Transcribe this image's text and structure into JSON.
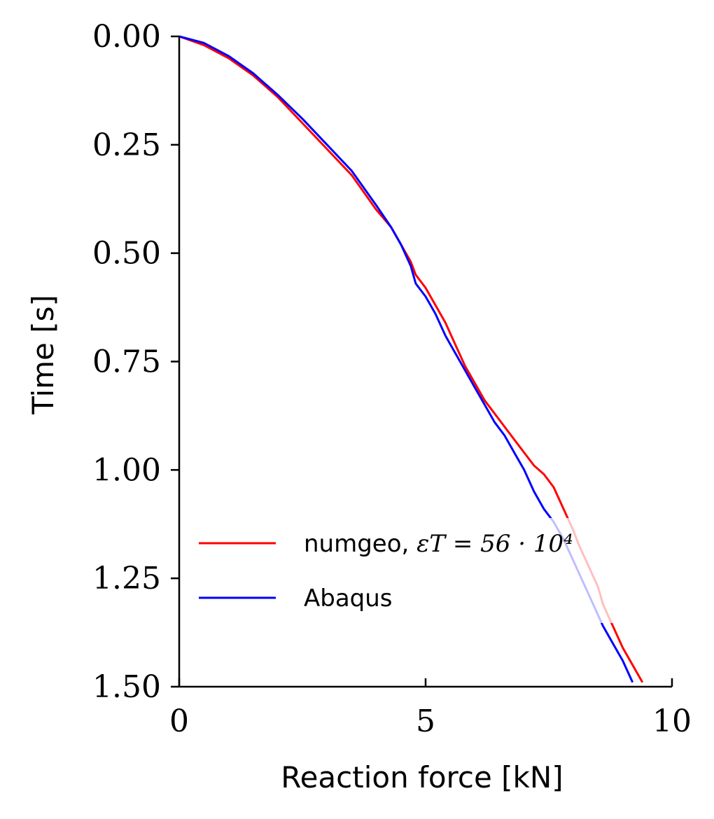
{
  "chart_data": {
    "type": "line",
    "xlabel": "Reaction force [kN]",
    "ylabel": "Time [s]",
    "xlim": [
      0,
      10
    ],
    "ylim": [
      0,
      1.5
    ],
    "y_inverted": true,
    "x_ticks": [
      "0",
      "5",
      "10"
    ],
    "y_ticks": [
      "0.00",
      "0.25",
      "0.50",
      "0.75",
      "1.00",
      "1.25",
      "1.50"
    ],
    "grid": false,
    "legend_position": "lower-left",
    "series": [
      {
        "name": "numgeo, ",
        "name_math": "εT = 56 · 10⁴",
        "color": "#ff0000",
        "x": [
          0.0,
          0.5,
          1.0,
          1.5,
          2.0,
          2.5,
          3.0,
          3.5,
          4.0,
          4.3,
          4.5,
          4.7,
          4.8,
          5.0,
          5.2,
          5.4,
          5.6,
          5.8,
          6.0,
          6.2,
          6.4,
          6.6,
          6.8,
          7.0,
          7.2,
          7.4,
          7.6,
          7.8,
          8.0,
          8.1,
          8.3,
          8.5,
          8.6,
          8.8,
          9.0,
          9.2,
          9.4
        ],
        "y": [
          0.0,
          0.02,
          0.05,
          0.09,
          0.14,
          0.2,
          0.26,
          0.32,
          0.4,
          0.44,
          0.48,
          0.52,
          0.55,
          0.58,
          0.62,
          0.66,
          0.71,
          0.76,
          0.8,
          0.84,
          0.87,
          0.9,
          0.93,
          0.96,
          0.99,
          1.01,
          1.04,
          1.09,
          1.14,
          1.17,
          1.22,
          1.27,
          1.31,
          1.36,
          1.41,
          1.45,
          1.49
        ]
      },
      {
        "name": "Abaqus",
        "color": "#0000ff",
        "x": [
          0.0,
          0.5,
          1.0,
          1.5,
          2.0,
          2.5,
          3.0,
          3.5,
          4.0,
          4.3,
          4.5,
          4.7,
          4.8,
          5.0,
          5.2,
          5.4,
          5.6,
          5.8,
          6.0,
          6.2,
          6.4,
          6.6,
          6.8,
          7.0,
          7.2,
          7.4,
          7.6,
          7.8,
          8.0,
          8.2,
          8.4,
          8.6,
          8.8,
          9.0,
          9.2
        ],
        "y": [
          0.0,
          0.015,
          0.045,
          0.085,
          0.135,
          0.19,
          0.25,
          0.31,
          0.39,
          0.44,
          0.48,
          0.53,
          0.57,
          0.6,
          0.64,
          0.69,
          0.73,
          0.77,
          0.81,
          0.85,
          0.89,
          0.92,
          0.96,
          1.0,
          1.05,
          1.09,
          1.12,
          1.16,
          1.21,
          1.26,
          1.31,
          1.36,
          1.4,
          1.44,
          1.49
        ]
      }
    ]
  }
}
